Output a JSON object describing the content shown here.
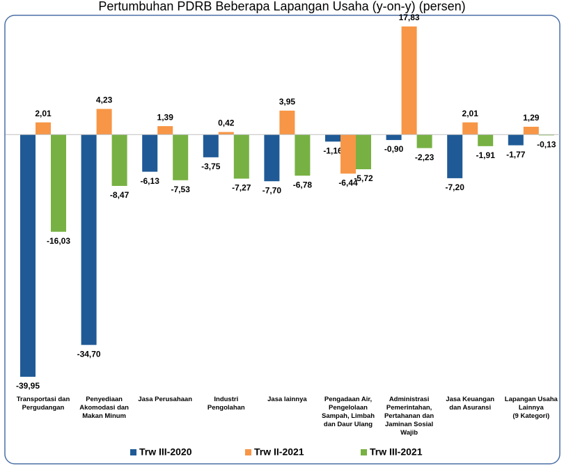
{
  "chart_data": {
    "type": "bar",
    "title": "Pertumbuhan PDRB Beberapa Lapangan Usaha (y-on-y) (persen)",
    "categories": [
      "Transportasi dan\nPergudangan",
      "Penyediaan\nAkomodasi dan\nMakan Minum",
      "Jasa Perusahaan",
      "Industri\nPengolahan",
      "Jasa lainnya",
      "Pengadaan Air,\nPengelolaan\nSampah, Limbah\ndan Daur Ulang",
      "Administrasi\nPemerintahan,\nPertahanan dan\nJaminan Sosial\nWajib",
      "Jasa Keuangan\ndan Asuransi",
      "Lapangan Usaha\nLainnya\n(9 Kategori)"
    ],
    "series": [
      {
        "name": "Trw III-2020",
        "color": "#1f5a96",
        "values": [
          -39.95,
          -34.7,
          -6.13,
          -3.75,
          -7.7,
          -1.16,
          -0.9,
          -7.2,
          -1.77
        ],
        "value_labels": [
          "-39,95",
          "-34,70",
          "-6,13",
          "-3,75",
          "-7,70",
          "-1,16",
          "-0,90",
          "-7,20",
          "-1,77"
        ]
      },
      {
        "name": "Trw II-2021",
        "color": "#f79646",
        "values": [
          2.01,
          4.23,
          1.39,
          0.42,
          3.95,
          -6.44,
          17.83,
          2.01,
          1.29
        ],
        "value_labels": [
          "2,01",
          "4,23",
          "1,39",
          "0,42",
          "3,95",
          "-6,44",
          "17,83",
          "2,01",
          "1,29"
        ]
      },
      {
        "name": "Trw III-2021",
        "color": "#77b143",
        "values": [
          -16.03,
          -8.47,
          -7.53,
          -7.27,
          -6.78,
          -5.72,
          -2.23,
          -1.91,
          -0.13
        ],
        "value_labels": [
          "-16,03",
          "-8,47",
          "-7,53",
          "-7,27",
          "-6,78",
          "-5,72",
          "-2,23",
          "-1,91",
          "-0,13"
        ]
      }
    ],
    "legend": "bottom"
  }
}
